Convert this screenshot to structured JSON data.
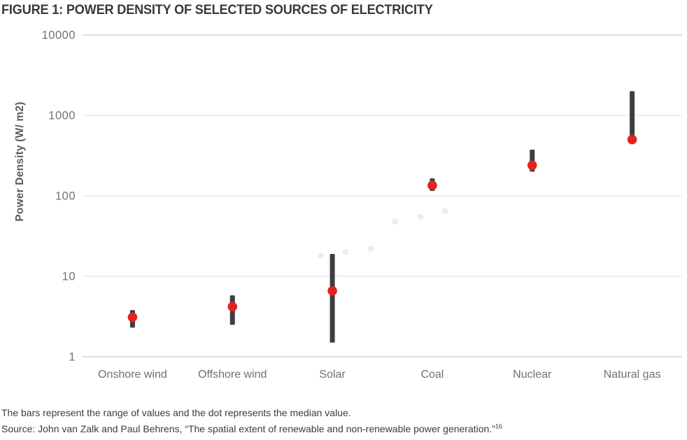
{
  "figure": {
    "title": "FIGURE 1: POWER DENSITY OF SELECTED SOURCES OF ELECTRICITY",
    "note": "The bars represent the range of values and the dot represents the median value.",
    "source": "Source: John van Zalk and Paul Behrens, “The spatial extent of renewable and non-renewable power generation.”",
    "source_ref": "16"
  },
  "chart_data": {
    "type": "range_bar_with_median_dot",
    "title": "FIGURE 1: POWER DENSITY OF SELECTED SOURCES OF ELECTRICITY",
    "ylabel": "Power Density (W/ m2)",
    "xlabel": "",
    "yscale": "log",
    "ylim": [
      1,
      10000
    ],
    "yticks": [
      "1",
      "10",
      "100",
      "1000",
      "10000"
    ],
    "grid": "horizontal",
    "legend": "none",
    "categories": [
      "Onshore wind",
      "Offshore wind",
      "Solar",
      "Coal",
      "Nuclear",
      "Natural gas"
    ],
    "points": [
      {
        "category": "Onshore wind",
        "min": 2.3,
        "max": 3.8,
        "median": 3.1
      },
      {
        "category": "Offshore wind",
        "min": 2.5,
        "max": 5.8,
        "median": 4.2
      },
      {
        "category": "Solar",
        "min": 1.5,
        "max": 19,
        "median": 6.6
      },
      {
        "category": "Coal",
        "min": 115,
        "max": 165,
        "median": 135
      },
      {
        "category": "Nuclear",
        "min": 200,
        "max": 375,
        "median": 240
      },
      {
        "category": "Natural gas",
        "min": 470,
        "max": 2000,
        "median": 500
      }
    ],
    "background_points": [
      {
        "x": 458,
        "value": 18
      },
      {
        "x": 494,
        "value": 20
      },
      {
        "x": 530,
        "value": 22
      },
      {
        "x": 565,
        "value": 48
      },
      {
        "x": 601,
        "value": 55
      },
      {
        "x": 636,
        "value": 65
      }
    ],
    "colors": {
      "bar": "#3e3e40",
      "dot": "#e42321",
      "grid_major": "#d4d4d6",
      "grid_minor": "#ebebed",
      "axis_text": "#717275",
      "ghost": "#eeeeef"
    }
  }
}
